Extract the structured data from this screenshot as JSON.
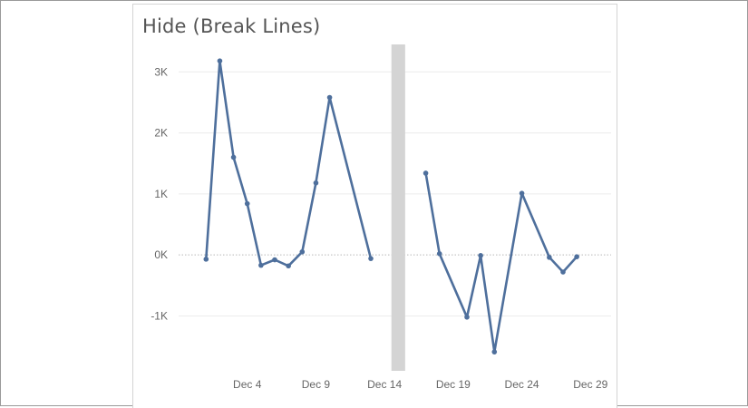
{
  "chart_data": {
    "type": "line",
    "title": "Hide (Break Lines)",
    "xlabel": "",
    "ylabel": "",
    "x_tick_labels": [
      {
        "label": "Dec 4",
        "day": 4
      },
      {
        "label": "Dec 9",
        "day": 9
      },
      {
        "label": "Dec 14",
        "day": 14
      },
      {
        "label": "Dec 19",
        "day": 19
      },
      {
        "label": "Dec 24",
        "day": 24
      },
      {
        "label": "Dec 29",
        "day": 29
      }
    ],
    "y_tick_labels": [
      {
        "label": "3K",
        "value": 3000
      },
      {
        "label": "2K",
        "value": 2000
      },
      {
        "label": "1K",
        "value": 1000
      },
      {
        "label": "0K",
        "value": 0
      },
      {
        "label": "-1K",
        "value": -1000
      }
    ],
    "ylim": [
      -1900,
      3450
    ],
    "xlim": [
      -1,
      30.5
    ],
    "grid": true,
    "gap_band": {
      "x_start": 14.5,
      "x_end": 15.5
    },
    "series": [
      {
        "color": "#4e6f9c",
        "segments": [
          [
            {
              "x": "Dec 1",
              "y": -70
            },
            {
              "x": "Dec 2",
              "y": 3180
            },
            {
              "x": "Dec 3",
              "y": 1600
            },
            {
              "x": "Dec 4",
              "y": 840
            },
            {
              "x": "Dec 5",
              "y": -170
            },
            {
              "x": "Dec 6",
              "y": -80
            },
            {
              "x": "Dec 7",
              "y": -180
            },
            {
              "x": "Dec 8",
              "y": 50
            },
            {
              "x": "Dec 9",
              "y": 1180
            },
            {
              "x": "Dec 10",
              "y": 2580
            },
            {
              "x": "Dec 13",
              "y": -60
            }
          ],
          [
            {
              "x": "Dec 17",
              "y": 1340
            },
            {
              "x": "Dec 18",
              "y": 20
            },
            {
              "x": "Dec 20",
              "y": -1020
            },
            {
              "x": "Dec 21",
              "y": -10
            },
            {
              "x": "Dec 22",
              "y": -1590
            },
            {
              "x": "Dec 24",
              "y": 1010
            },
            {
              "x": "Dec 26",
              "y": -40
            },
            {
              "x": "Dec 27",
              "y": -280
            },
            {
              "x": "Dec 28",
              "y": -30
            }
          ]
        ]
      }
    ]
  }
}
